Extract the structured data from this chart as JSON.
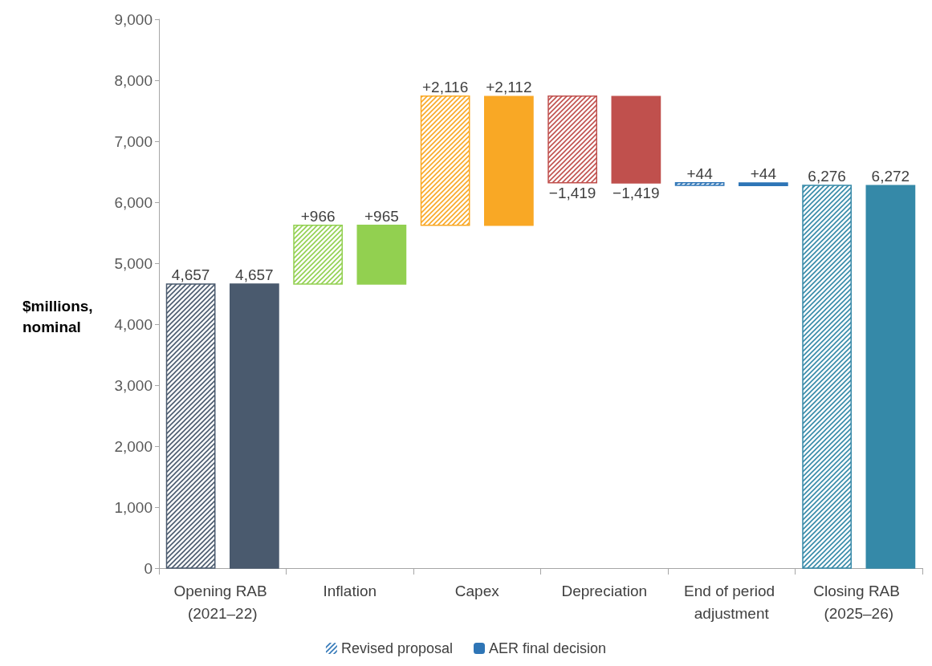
{
  "chart_data": {
    "type": "bar",
    "ylabel": "$millions, nominal",
    "categories": [
      "Opening RAB (2021–22)",
      "Inflation",
      "Capex",
      "Depreciation",
      "End of period adjustment",
      "Closing RAB (2025–26)"
    ],
    "series": [
      {
        "name": "Revised proposal",
        "color": "#2e75b6",
        "colors": [
          "#4a5a6e",
          "#92d050",
          "#f9a825",
          "#c0504d",
          "#2e75b6",
          "#3589a8"
        ],
        "base": [
          0,
          4657,
          5623,
          7739,
          6276,
          0
        ],
        "values": [
          4657,
          966,
          2116,
          -1419,
          44,
          6276
        ],
        "value_labels": [
          "4,657",
          "+966",
          "+2,116",
          "−1,419",
          "+44",
          "6,276"
        ]
      },
      {
        "name": "AER final decision",
        "color": "#2e75b6",
        "colors": [
          "#4a5a6e",
          "#92d050",
          "#f9a825",
          "#c0504d",
          "#2e75b6",
          "#3589a8"
        ],
        "base": [
          0,
          4657,
          5622,
          7734,
          6272,
          0
        ],
        "values": [
          4657,
          965,
          2112,
          -1419,
          44,
          6272
        ],
        "value_labels": [
          "4,657",
          "+965",
          "+2,112",
          "−1,419",
          "+44",
          "6,272"
        ]
      }
    ],
    "ylim": [
      0,
      9000
    ],
    "yticks": [
      0,
      {
        "value": 1000,
        "label": "1,000"
      },
      {
        "value": 2000,
        "label": "2,000"
      },
      {
        "value": 3000,
        "label": "3,000"
      },
      {
        "value": 4000,
        "label": "4,000"
      },
      {
        "value": 5000,
        "label": "5,000"
      },
      {
        "value": 6000,
        "label": "6,000"
      },
      {
        "value": 7000,
        "label": "7,000"
      },
      {
        "value": 8000,
        "label": "8,000"
      },
      {
        "value": 9000,
        "label": "9,000"
      }
    ],
    "grid": false,
    "legend": "bottom"
  }
}
